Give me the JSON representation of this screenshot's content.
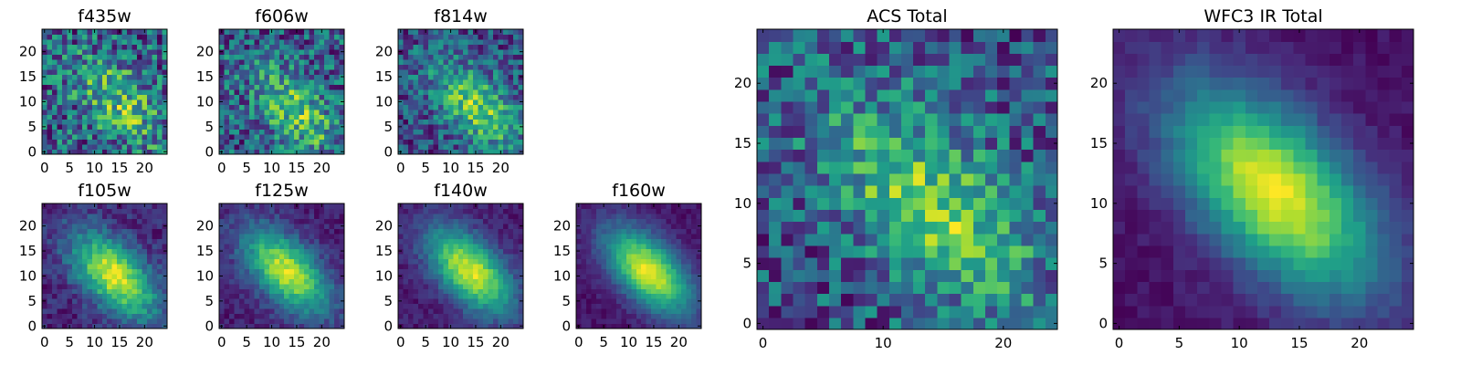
{
  "colormap": "viridis",
  "colors": {
    "viridis_stops": [
      "#440154",
      "#482878",
      "#3e4989",
      "#31688e",
      "#26828e",
      "#1f9e89",
      "#35b779",
      "#6ece58",
      "#b5de2b",
      "#fde725"
    ],
    "axes_frame": "#000000",
    "background": "#ffffff"
  },
  "chart_data": [
    {
      "type": "heatmap",
      "title": "f435w",
      "grid": [
        25,
        25
      ],
      "xlim": [
        -0.5,
        24.5
      ],
      "ylim": [
        -0.5,
        24.5
      ],
      "xticks": [
        0,
        5,
        10,
        15,
        20
      ],
      "yticks": [
        0,
        5,
        10,
        15,
        20
      ],
      "values_description": "noise",
      "peak": [
        15,
        10
      ],
      "noise_level": 0.45
    },
    {
      "type": "heatmap",
      "title": "f606w",
      "grid": [
        25,
        25
      ],
      "xlim": [
        -0.5,
        24.5
      ],
      "ylim": [
        -0.5,
        24.5
      ],
      "xticks": [
        0,
        5,
        10,
        15,
        20
      ],
      "yticks": [
        0,
        5,
        10,
        15,
        20
      ],
      "values_description": "noise",
      "peak": [
        15,
        8
      ],
      "noise_level": 0.42
    },
    {
      "type": "heatmap",
      "title": "f814w",
      "grid": [
        25,
        25
      ],
      "xlim": [
        -0.5,
        24.5
      ],
      "ylim": [
        -0.5,
        24.5
      ],
      "xticks": [
        0,
        5,
        10,
        15,
        20
      ],
      "yticks": [
        0,
        5,
        10,
        15,
        20
      ],
      "values_description": "noisy source",
      "peak": [
        15,
        9
      ],
      "noise_level": 0.32
    },
    {
      "type": "heatmap",
      "title": "f105w",
      "grid": [
        25,
        25
      ],
      "xlim": [
        -0.5,
        24.5
      ],
      "ylim": [
        -0.5,
        24.5
      ],
      "xticks": [
        0,
        5,
        10,
        15,
        20
      ],
      "yticks": [
        0,
        5,
        10,
        15,
        20
      ],
      "values_description": "elongated source",
      "peak": [
        14,
        10
      ],
      "noise_level": 0.12
    },
    {
      "type": "heatmap",
      "title": "f125w",
      "grid": [
        25,
        25
      ],
      "xlim": [
        -0.5,
        24.5
      ],
      "ylim": [
        -0.5,
        24.5
      ],
      "xticks": [
        0,
        5,
        10,
        15,
        20
      ],
      "yticks": [
        0,
        5,
        10,
        15,
        20
      ],
      "values_description": "elongated source",
      "peak": [
        13,
        11
      ],
      "noise_level": 0.1
    },
    {
      "type": "heatmap",
      "title": "f140w",
      "grid": [
        25,
        25
      ],
      "xlim": [
        -0.5,
        24.5
      ],
      "ylim": [
        -0.5,
        24.5
      ],
      "xticks": [
        0,
        5,
        10,
        15,
        20
      ],
      "yticks": [
        0,
        5,
        10,
        15,
        20
      ],
      "values_description": "elongated source",
      "peak": [
        14,
        11
      ],
      "noise_level": 0.08
    },
    {
      "type": "heatmap",
      "title": "f160w",
      "grid": [
        25,
        25
      ],
      "xlim": [
        -0.5,
        24.5
      ],
      "ylim": [
        -0.5,
        24.5
      ],
      "xticks": [
        0,
        5,
        10,
        15,
        20
      ],
      "yticks": [
        0,
        5,
        10,
        15,
        20
      ],
      "values_description": "elongated source",
      "peak": [
        14,
        11
      ],
      "noise_level": 0.06
    },
    {
      "type": "heatmap",
      "title": "ACS Total",
      "grid": [
        25,
        25
      ],
      "xlim": [
        -0.5,
        24.5
      ],
      "ylim": [
        -0.5,
        24.5
      ],
      "xticks": [
        0,
        10,
        20
      ],
      "yticks": [
        0,
        5,
        10,
        15,
        20
      ],
      "values_description": "noise",
      "peak": [
        14,
        10
      ],
      "noise_level": 0.34
    },
    {
      "type": "heatmap",
      "title": "WFC3 IR Total",
      "grid": [
        25,
        25
      ],
      "xlim": [
        -0.5,
        24.5
      ],
      "ylim": [
        -0.5,
        24.5
      ],
      "xticks": [
        0,
        5,
        10,
        15,
        20
      ],
      "yticks": [
        0,
        5,
        10,
        15,
        20
      ],
      "values_description": "elongated source",
      "peak": [
        13,
        11
      ],
      "noise_level": 0.05
    }
  ]
}
